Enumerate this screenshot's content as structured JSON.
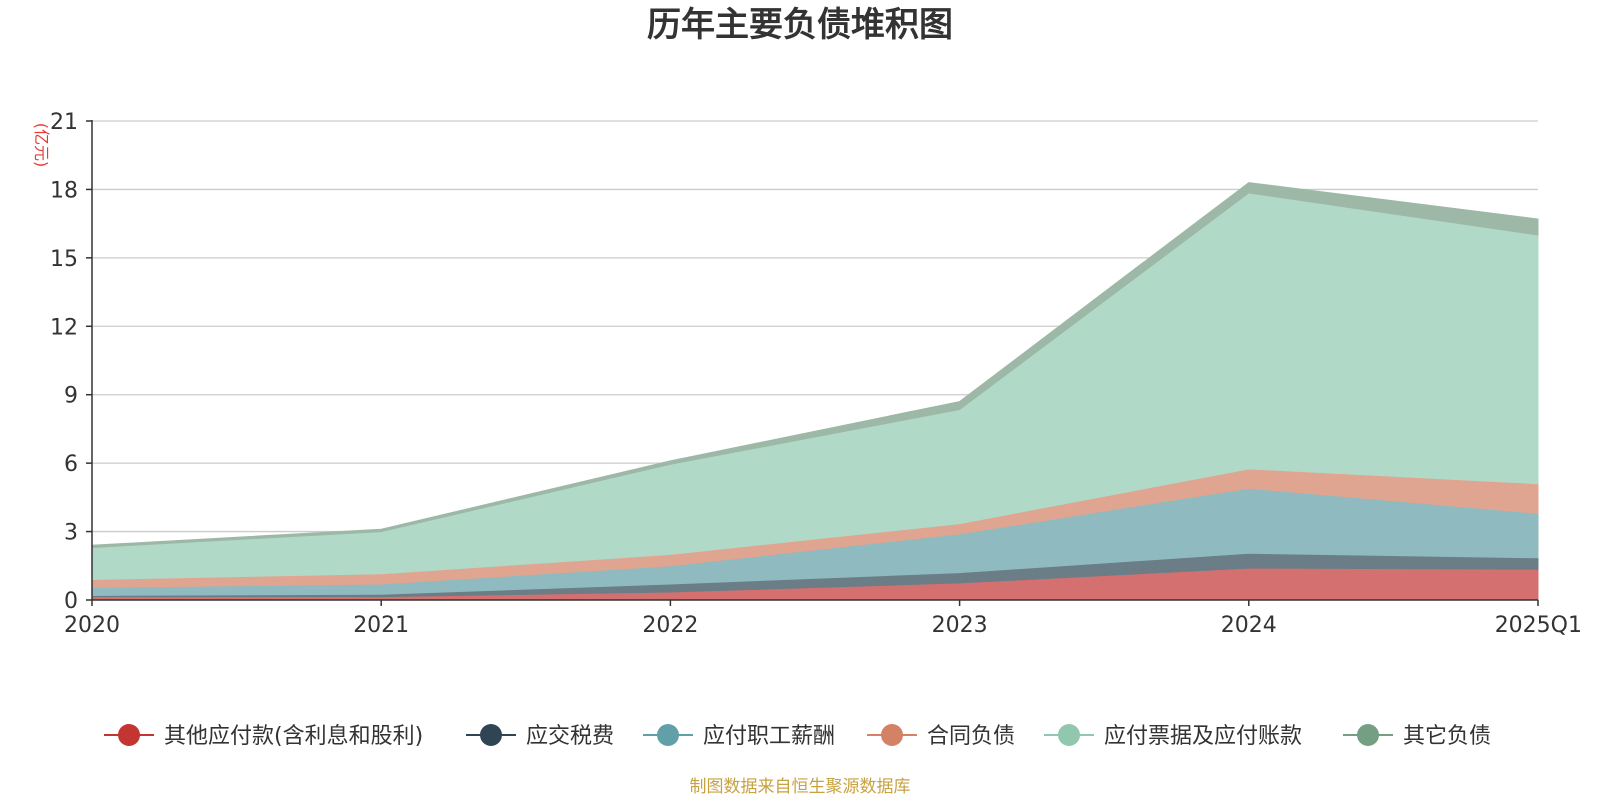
{
  "chart_data": {
    "type": "area",
    "stacked": true,
    "title": "历年主要负债堆积图",
    "y_unit": "(亿元)",
    "source": "制图数据来自恒生聚源数据库",
    "categories": [
      "2020",
      "2021",
      "2022",
      "2023",
      "2024",
      "2025Q1"
    ],
    "ylim": [
      0,
      21
    ],
    "yticks": [
      0,
      3,
      6,
      9,
      12,
      15,
      18,
      21
    ],
    "grid": true,
    "legend_position": "bottom",
    "series": [
      {
        "name": "其他应付款(含利息和股利)",
        "values": [
          0.15,
          0.15,
          0.35,
          0.75,
          1.4,
          1.35
        ],
        "color": "#c23531",
        "fill": "#d47170"
      },
      {
        "name": "应交税费",
        "values": [
          0.05,
          0.1,
          0.35,
          0.45,
          0.65,
          0.5
        ],
        "color": "#2f4554",
        "fill": "#6b7d86"
      },
      {
        "name": "应付职工薪酬",
        "values": [
          0.35,
          0.45,
          0.8,
          1.7,
          2.85,
          1.95
        ],
        "color": "#61a0a8",
        "fill": "#8fbabf"
      },
      {
        "name": "合同负债",
        "values": [
          0.35,
          0.45,
          0.5,
          0.45,
          0.85,
          1.3
        ],
        "color": "#d48265",
        "fill": "#e0a590"
      },
      {
        "name": "应付票据及应付账款",
        "values": [
          1.4,
          1.85,
          3.95,
          5.0,
          12.1,
          10.9
        ],
        "color": "#91c7ae",
        "fill": "#b1d9c7"
      },
      {
        "name": "其它负债",
        "values": [
          0.1,
          0.1,
          0.15,
          0.35,
          0.45,
          0.7
        ],
        "color": "#749f83",
        "fill": "#9db8a7"
      }
    ]
  }
}
